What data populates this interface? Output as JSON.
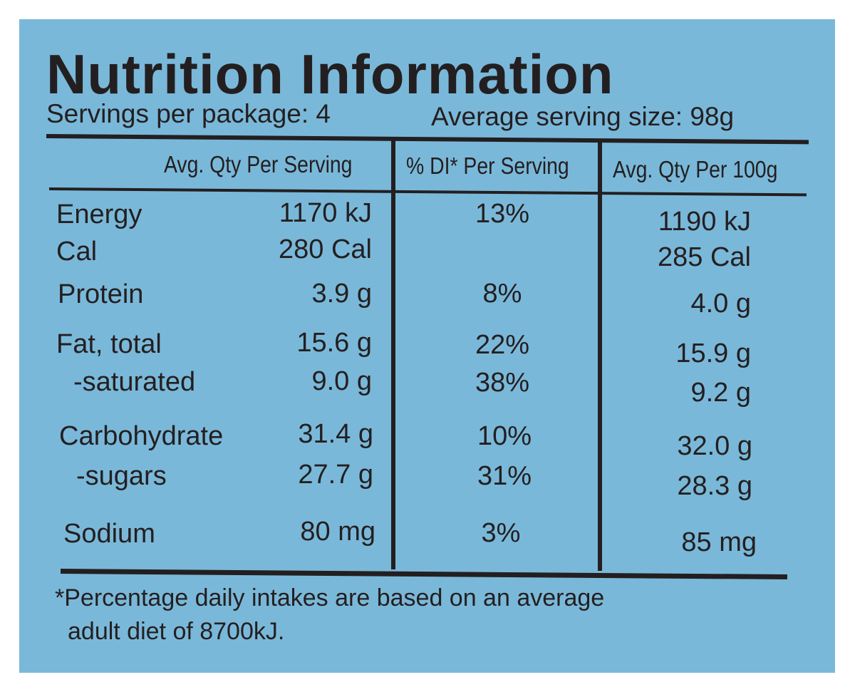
{
  "label": {
    "title": "Nutrition Information",
    "servings_per_package": "Servings per package: 4",
    "average_serving_size": "Average serving size: 98g",
    "columns": {
      "per_serving": "Avg. Qty Per Serving",
      "di_per_serving": "% DI* Per Serving",
      "per_100g": "Avg. Qty Per 100g"
    },
    "rows": {
      "energy": {
        "label": "Energy",
        "per_serving": "1170 kJ",
        "di": "13%",
        "per_100g": "1190 kJ"
      },
      "cal": {
        "label": "Cal",
        "per_serving": "280 Cal",
        "di": "",
        "per_100g": "285 Cal"
      },
      "protein": {
        "label": "Protein",
        "per_serving": "3.9 g",
        "di": "8%",
        "per_100g": "4.0 g"
      },
      "fat_total": {
        "label": "Fat, total",
        "per_serving": "15.6 g",
        "di": "22%",
        "per_100g": "15.9 g"
      },
      "saturated": {
        "label": "-saturated",
        "per_serving": "9.0 g",
        "di": "38%",
        "per_100g": "9.2 g"
      },
      "carbohydrate": {
        "label": "Carbohydrate",
        "per_serving": "31.4 g",
        "di": "10%",
        "per_100g": "32.0 g"
      },
      "sugars": {
        "label": "-sugars",
        "per_serving": "27.7 g",
        "di": "31%",
        "per_100g": "28.3 g"
      },
      "sodium": {
        "label": "Sodium",
        "per_serving": "80 mg",
        "di": "3%",
        "per_100g": "85 mg"
      }
    },
    "footnote_line1": "*Percentage daily intakes are based on an average",
    "footnote_line2": "adult diet of 8700kJ.",
    "colors": {
      "background": "#7ab8d9",
      "ink": "#231f20"
    }
  }
}
